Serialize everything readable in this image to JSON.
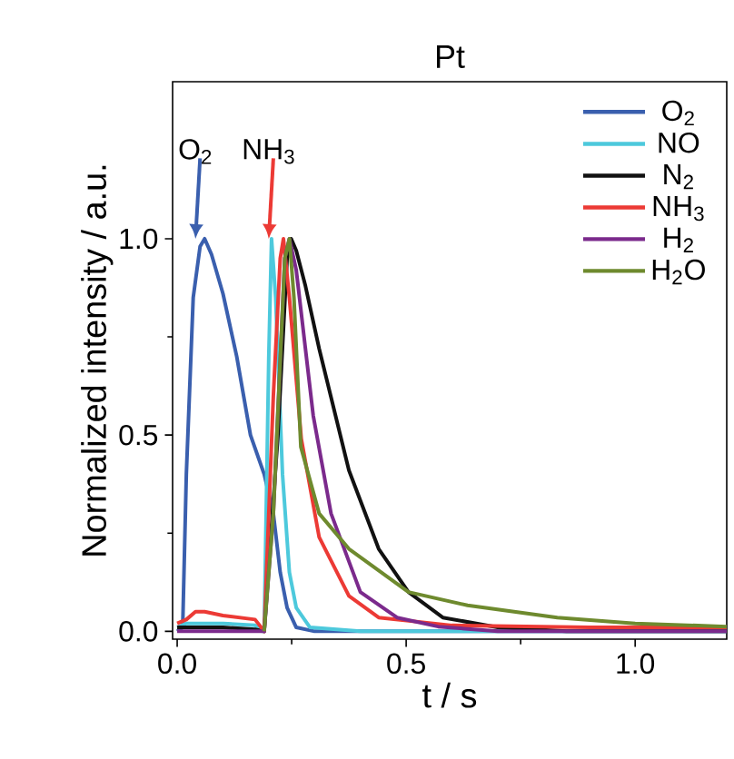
{
  "chart_data": {
    "type": "line",
    "title": "Pt",
    "xlabel": "t / s",
    "ylabel": "Normalized intensity / a.u.",
    "xlim": [
      -0.01,
      1.2
    ],
    "ylim": [
      -0.02,
      1.4
    ],
    "xticks": [
      {
        "value": 0,
        "label": "0.0"
      },
      0.5,
      {
        "value": 1,
        "label": "1.0"
      }
    ],
    "yticks": [
      {
        "value": 0,
        "label": "0.0"
      },
      0.5,
      {
        "value": 1,
        "label": "1.0"
      }
    ],
    "legend": "top right",
    "grid": false,
    "marker": "none",
    "line_style": "solid",
    "annotations": [
      {
        "text": "O$_{2}$",
        "x": 0.04,
        "y": 1.0
      },
      {
        "text": "NH$_{3}$",
        "x": 0.2,
        "y": 1.0
      }
    ],
    "series": [
      {
        "name": "O$_{2}$",
        "color": "#3a5fae",
        "x": [
          0,
          0.012,
          0.02,
          0.035,
          0.05,
          0.06,
          0.075,
          0.1,
          0.13,
          0.16,
          0.19,
          0.21,
          0.225,
          0.24,
          0.26,
          0.3,
          1.2
        ],
        "values": [
          0,
          0.01,
          0.4,
          0.85,
          0.98,
          1.0,
          0.96,
          0.86,
          0.7,
          0.5,
          0.4,
          0.3,
          0.15,
          0.06,
          0.01,
          0,
          0
        ]
      },
      {
        "name": "NO",
        "color": "#4dc9dc",
        "x": [
          0,
          0.02,
          0.1,
          0.17,
          0.185,
          0.19,
          0.2,
          0.206,
          0.215,
          0.23,
          0.245,
          0.26,
          0.29,
          0.4,
          1.2
        ],
        "values": [
          0.01,
          0.02,
          0.02,
          0.015,
          0,
          0,
          0.7,
          1.0,
          0.85,
          0.4,
          0.15,
          0.06,
          0.01,
          0,
          0
        ]
      },
      {
        "name": "N$_{2}$",
        "color": "#111111",
        "x": [
          0,
          0.1,
          0.17,
          0.19,
          0.22,
          0.24,
          0.249,
          0.26,
          0.28,
          0.31,
          0.375,
          0.44,
          0.505,
          0.58,
          0.7,
          0.85,
          1.2
        ],
        "values": [
          0.01,
          0.01,
          0.005,
          0,
          0.5,
          0.95,
          1.0,
          0.97,
          0.88,
          0.72,
          0.41,
          0.21,
          0.1,
          0.035,
          0.01,
          0,
          0
        ]
      },
      {
        "name": "NH$_{3}$",
        "color": "#ec3a35",
        "x": [
          0,
          0.02,
          0.04,
          0.06,
          0.1,
          0.17,
          0.19,
          0.21,
          0.225,
          0.232,
          0.245,
          0.271,
          0.31,
          0.375,
          0.44,
          0.6,
          0.9,
          1.2
        ],
        "values": [
          0.02,
          0.03,
          0.05,
          0.05,
          0.04,
          0.03,
          0,
          0.6,
          0.95,
          1.0,
          0.85,
          0.49,
          0.24,
          0.09,
          0.035,
          0.015,
          0.01,
          0.01
        ]
      },
      {
        "name": "H$_{2}$",
        "color": "#7b2a8c",
        "x": [
          0,
          0.19,
          0.21,
          0.235,
          0.245,
          0.26,
          0.297,
          0.336,
          0.4,
          0.48,
          0.57,
          0.7,
          1.2
        ],
        "values": [
          0,
          0,
          0.3,
          0.95,
          1.0,
          0.92,
          0.55,
          0.3,
          0.1,
          0.035,
          0.012,
          0,
          0
        ]
      },
      {
        "name": "H$_{2}$O",
        "color": "#6e8a2e",
        "x": [
          0.19,
          0.21,
          0.235,
          0.245,
          0.255,
          0.27,
          0.31,
          0.375,
          0.505,
          0.634,
          0.83,
          1.0,
          1.2
        ],
        "values": [
          0,
          0.3,
          0.95,
          1.0,
          0.85,
          0.47,
          0.3,
          0.21,
          0.1,
          0.066,
          0.035,
          0.02,
          0.012
        ]
      }
    ]
  }
}
